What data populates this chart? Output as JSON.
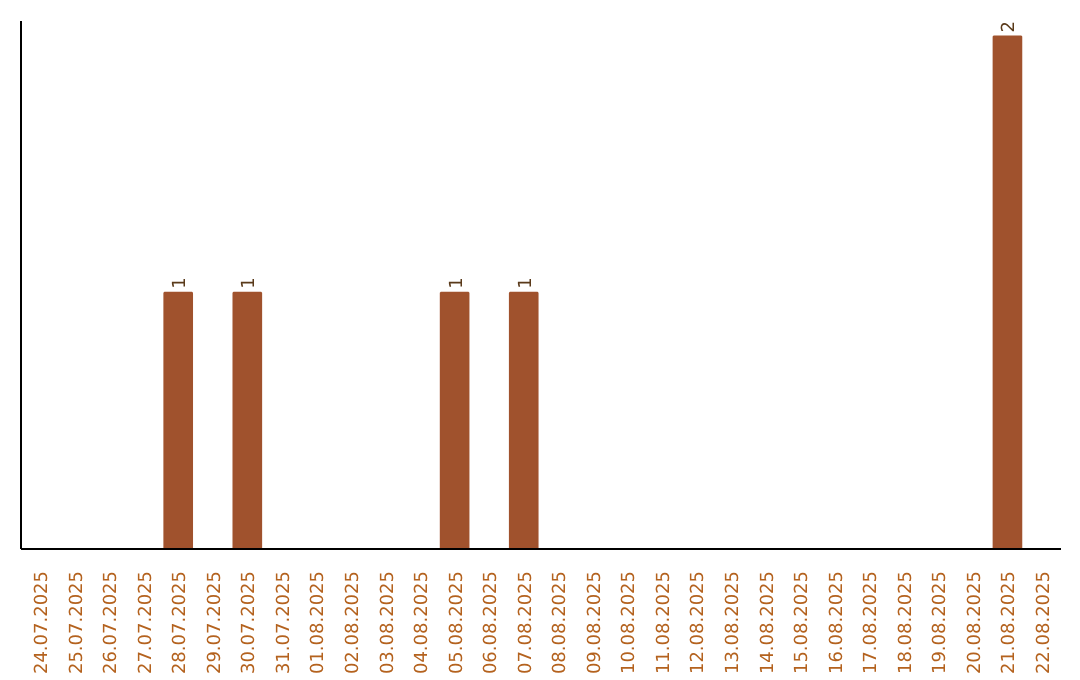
{
  "chart_data": {
    "type": "bar",
    "categories": [
      "24.07.2025",
      "25.07.2025",
      "26.07.2025",
      "27.07.2025",
      "28.07.2025",
      "29.07.2025",
      "30.07.2025",
      "31.07.2025",
      "01.08.2025",
      "02.08.2025",
      "03.08.2025",
      "04.08.2025",
      "05.08.2025",
      "06.08.2025",
      "07.08.2025",
      "08.08.2025",
      "09.08.2025",
      "10.08.2025",
      "11.08.2025",
      "12.08.2025",
      "13.08.2025",
      "14.08.2025",
      "15.08.2025",
      "16.08.2025",
      "17.08.2025",
      "18.08.2025",
      "19.08.2025",
      "20.08.2025",
      "21.08.2025",
      "22.08.2025"
    ],
    "values": [
      0,
      0,
      0,
      0,
      1,
      0,
      1,
      0,
      0,
      0,
      0,
      0,
      1,
      0,
      1,
      0,
      0,
      0,
      0,
      0,
      0,
      0,
      0,
      0,
      0,
      0,
      0,
      0,
      2,
      0
    ],
    "value_labels": [
      null,
      null,
      null,
      null,
      "1",
      null,
      "1",
      null,
      null,
      null,
      null,
      null,
      "1",
      null,
      "1",
      null,
      null,
      null,
      null,
      null,
      null,
      null,
      null,
      null,
      null,
      null,
      null,
      null,
      "2",
      null
    ],
    "color": "#a0522d",
    "grid": false,
    "tick_labels": "x"
  }
}
